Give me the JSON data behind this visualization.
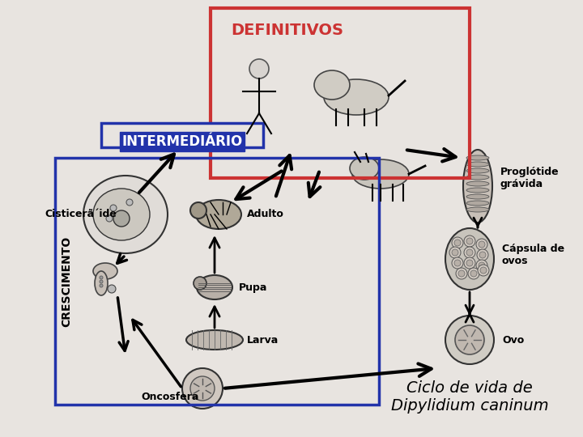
{
  "bg_color": "#e8e4e0",
  "title": "Ciclo de vida de\nDipylidium caninum",
  "label_definitivos": "DEFINITIVOS",
  "label_intermediario": "INTERMEDIÁRIO",
  "label_crescimento": "CRESCIMENTO",
  "label_cisticercoide": "Cisticerã´ide",
  "label_adulto": "Adulto",
  "label_pupa": "Pupa",
  "label_larva": "Larva",
  "label_oncosfera": "Oncosfera",
  "label_proglotide": "Proglótide\ngrávida",
  "label_capsula": "Cápsula de\novos",
  "label_ovo": "Ovo",
  "box_def_color": "#cc3333",
  "box_int_color": "#2233aa",
  "box_inner_color": "#2233aa",
  "arrow_color": "black"
}
